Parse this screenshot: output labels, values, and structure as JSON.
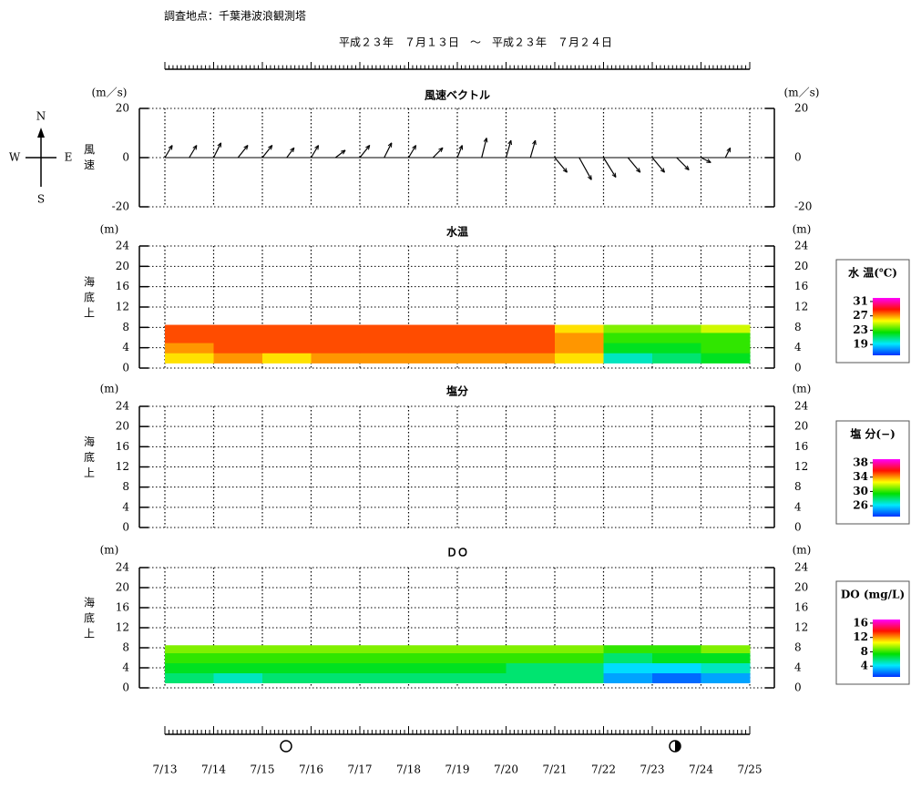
{
  "header": {
    "station": "調査地点：千葉港波浪観測塔",
    "period": "平成２３年　７月１３日　～　平成２３年　７月２４日"
  },
  "compass": {
    "n": "N",
    "s": "S",
    "w": "W",
    "e": "E"
  },
  "x_axis": {
    "xlim": [
      13,
      25
    ],
    "xticks": [
      {
        "value": 13,
        "label": "7/13"
      },
      {
        "value": 14,
        "label": "7/14"
      },
      {
        "value": 15,
        "label": "7/15"
      },
      {
        "value": 16,
        "label": "7/16"
      },
      {
        "value": 17,
        "label": "7/17"
      },
      {
        "value": 18,
        "label": "7/18"
      },
      {
        "value": 19,
        "label": "7/19"
      },
      {
        "value": 20,
        "label": "7/20"
      },
      {
        "value": 21,
        "label": "7/21"
      },
      {
        "value": 22,
        "label": "7/22"
      },
      {
        "value": 23,
        "label": "7/23"
      },
      {
        "value": 24,
        "label": "7/24"
      },
      {
        "value": 25,
        "label": "7/25"
      }
    ]
  },
  "chart_data": [
    {
      "type": "vector",
      "title": "風速ベクトル",
      "unit_left": "(m／s)",
      "unit_right": "(m／s)",
      "ylabel_lines": [
        "風",
        "速"
      ],
      "ylim": [
        -20,
        20
      ],
      "yticks": [
        20,
        0,
        -20
      ],
      "x": [
        13,
        13.5,
        14,
        14.5,
        15,
        15.5,
        16,
        16.5,
        17,
        17.5,
        18,
        18.5,
        19,
        19.5,
        20,
        20.5,
        21,
        21.5,
        22,
        22.5,
        23,
        23.5,
        24,
        24.5
      ],
      "u": [
        3,
        3,
        3,
        4,
        4,
        3,
        3,
        4,
        4,
        3,
        3,
        4,
        2,
        2,
        2,
        2,
        5,
        5,
        5,
        5,
        5,
        5,
        4,
        2
      ],
      "v": [
        5,
        5,
        6,
        5,
        5,
        4,
        5,
        3,
        5,
        6,
        5,
        4,
        5,
        8,
        7,
        7,
        -6,
        -9,
        -8,
        -6,
        -6,
        -5,
        -2,
        4
      ],
      "color": "#000000"
    },
    {
      "type": "heatmap",
      "title": "水温",
      "unit_left": "(m)",
      "unit_right": "(m)",
      "ylabel_lines": [
        "海",
        "底",
        "上"
      ],
      "ylim": [
        0,
        24
      ],
      "yticks": [
        0,
        4,
        8,
        12,
        16,
        20,
        24
      ],
      "x_bins": [
        13,
        14,
        15,
        16,
        17,
        18,
        19,
        20,
        21,
        22,
        23,
        24,
        25
      ],
      "depth_bins": [
        1,
        3,
        5,
        7,
        8.5
      ],
      "values": [
        [
          26,
          27,
          26,
          27,
          27,
          27,
          27,
          27,
          26,
          20,
          21,
          22
        ],
        [
          27,
          28,
          28,
          28,
          28,
          28,
          28,
          28,
          27,
          22,
          22,
          23
        ],
        [
          28,
          28,
          28,
          28,
          28,
          28,
          28,
          28,
          27,
          23,
          23,
          23
        ],
        [
          28,
          28,
          28,
          28,
          28,
          28,
          28,
          28,
          26,
          24,
          24,
          25
        ]
      ],
      "colorbar": {
        "title": "水 温(℃)",
        "clim": [
          16,
          32
        ],
        "ticks": [
          31,
          27,
          23,
          19
        ]
      },
      "colormap": [
        "#0030ff",
        "#00e8ff",
        "#00e000",
        "#ffff00",
        "#ff1000",
        "#ff00ff"
      ]
    },
    {
      "type": "heatmap",
      "title": "塩分",
      "unit_left": "(m)",
      "unit_right": "(m)",
      "ylabel_lines": [
        "海",
        "底",
        "上"
      ],
      "ylim": [
        0,
        24
      ],
      "yticks": [
        0,
        4,
        8,
        12,
        16,
        20,
        24
      ],
      "colorbar": {
        "title": "塩 分(−)",
        "clim": [
          23,
          39
        ],
        "ticks": [
          38,
          34,
          30,
          26
        ]
      },
      "colormap": [
        "#0030ff",
        "#00e8ff",
        "#00e000",
        "#ffff00",
        "#ff1000",
        "#ff00ff"
      ]
    },
    {
      "type": "heatmap",
      "title": "ＤＯ",
      "unit_left": "(m)",
      "unit_right": "(m)",
      "ylabel_lines": [
        "海",
        "底",
        "上"
      ],
      "ylim": [
        0,
        24
      ],
      "yticks": [
        0,
        4,
        8,
        12,
        16,
        20,
        24
      ],
      "x_bins": [
        13,
        14,
        15,
        16,
        17,
        18,
        19,
        20,
        21,
        22,
        23,
        24,
        25
      ],
      "depth_bins": [
        1,
        3,
        5,
        7,
        8.5
      ],
      "values": [
        [
          6,
          5,
          6,
          6,
          6,
          6,
          6,
          6,
          6,
          3,
          2,
          3
        ],
        [
          7,
          7,
          7,
          7,
          7,
          7,
          7,
          6,
          6,
          4,
          4,
          5
        ],
        [
          8,
          8,
          8,
          8,
          8,
          8,
          8,
          8,
          8,
          6,
          7,
          7
        ],
        [
          9,
          9,
          9,
          9,
          9,
          9,
          9,
          9,
          9,
          8,
          8,
          9
        ]
      ],
      "colorbar": {
        "title": "DO (mg/L)",
        "clim": [
          1,
          17
        ],
        "ticks": [
          16,
          12,
          8,
          4
        ]
      },
      "colormap": [
        "#0030ff",
        "#00e8ff",
        "#00e000",
        "#ffff00",
        "#ff1000",
        "#ff00ff"
      ]
    }
  ]
}
